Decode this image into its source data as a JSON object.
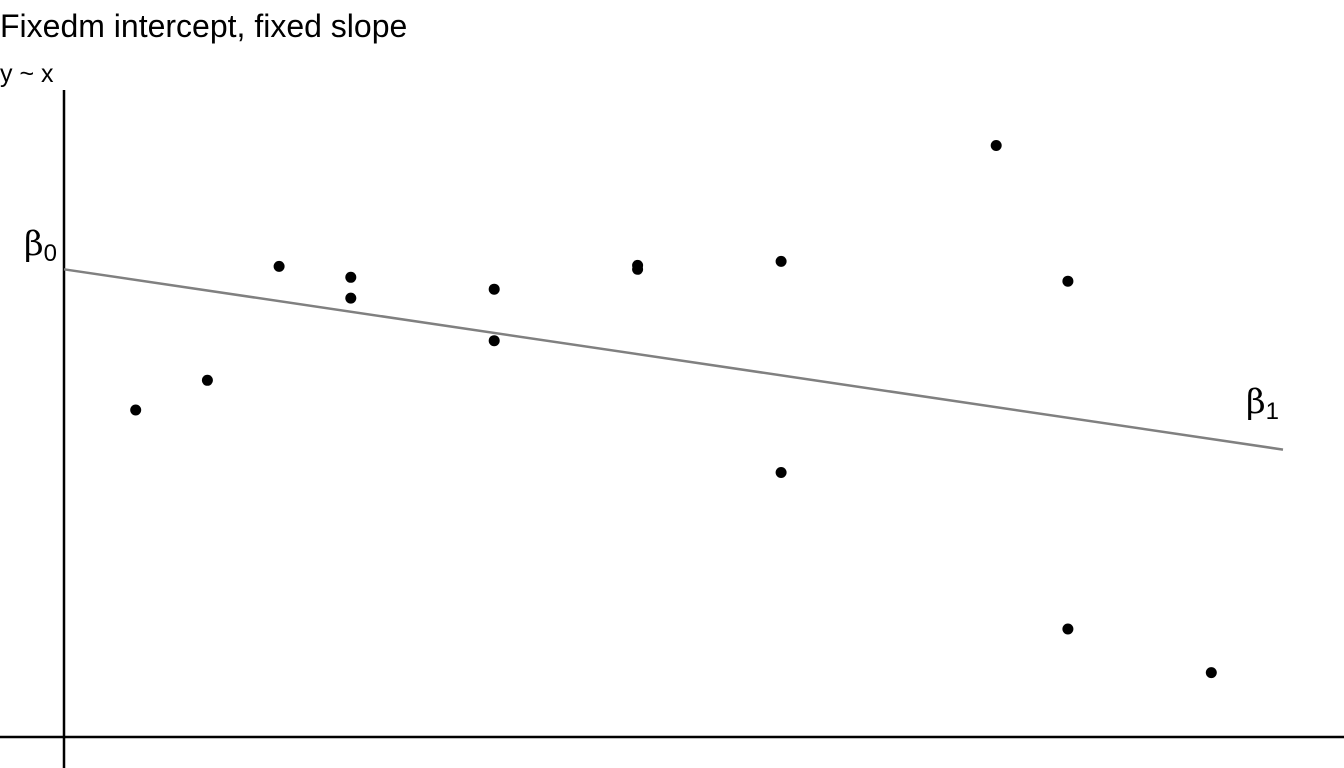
{
  "chart_data": {
    "type": "scatter",
    "title": "Fixedm intercept, fixed slope",
    "subtitle": "y ~ x",
    "xlim": [
      0,
      17
    ],
    "ylim": [
      0,
      6.53
    ],
    "points": [
      {
        "x": 1,
        "y": 3.3
      },
      {
        "x": 2,
        "y": 3.6
      },
      {
        "x": 3,
        "y": 4.75
      },
      {
        "x": 4,
        "y": 4.64
      },
      {
        "x": 4,
        "y": 4.43
      },
      {
        "x": 6,
        "y": 4.52
      },
      {
        "x": 6,
        "y": 4.0
      },
      {
        "x": 8,
        "y": 4.76
      },
      {
        "x": 8,
        "y": 4.72
      },
      {
        "x": 10,
        "y": 4.8
      },
      {
        "x": 10,
        "y": 2.67
      },
      {
        "x": 13,
        "y": 5.97
      },
      {
        "x": 14,
        "y": 4.6
      },
      {
        "x": 14,
        "y": 1.09
      },
      {
        "x": 16,
        "y": 0.65
      }
    ],
    "fit_line": {
      "intercept": 4.72,
      "slope": -0.107,
      "x_end": 17
    },
    "annotations": [
      {
        "symbol": "β",
        "subscript": "0"
      },
      {
        "symbol": "β",
        "subscript": "1"
      }
    ],
    "colors": {
      "points": "#000000",
      "fit_line": "#808080",
      "axes": "#000000"
    },
    "grid": false,
    "legend": "none"
  }
}
